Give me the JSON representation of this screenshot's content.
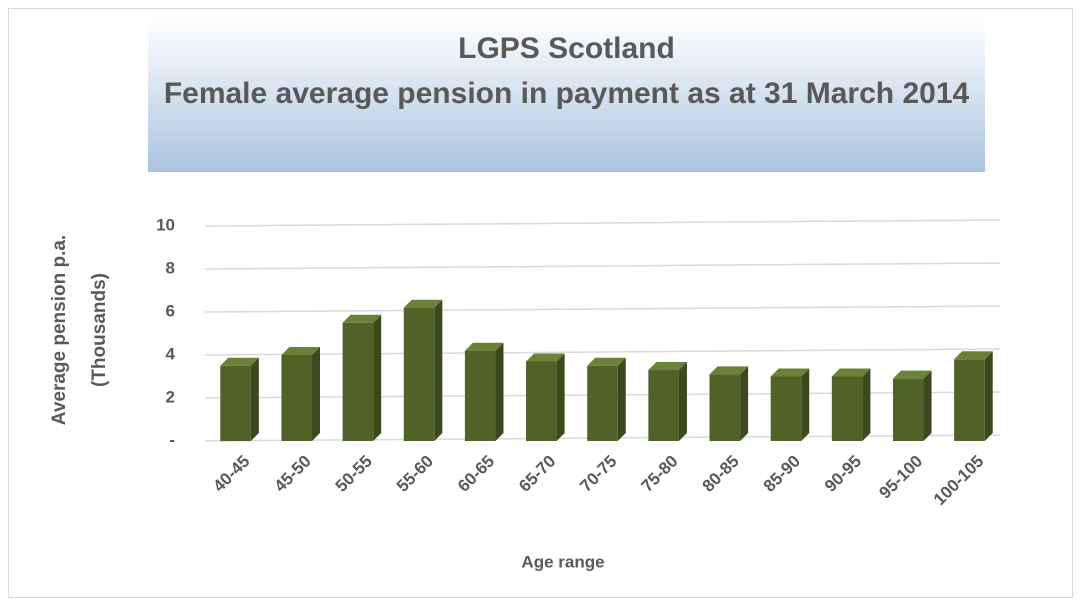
{
  "chart_data": {
    "type": "bar",
    "title": "LGPS Scotland",
    "subtitle": "Female average pension in payment as at 31 March 2014",
    "ylabel": [
      "Average pension p.a.",
      "(Thousands)"
    ],
    "xlabel": "Age range",
    "categories": [
      "40-45",
      "45-50",
      "50-55",
      "55-60",
      "60-65",
      "65-70",
      "70-75",
      "75-80",
      "80-85",
      "85-90",
      "90-95",
      "95-100",
      "100-105"
    ],
    "values": [
      3.5,
      4.0,
      5.5,
      6.2,
      4.2,
      3.7,
      3.5,
      3.3,
      3.1,
      3.0,
      3.0,
      2.9,
      3.8
    ],
    "color": "#4f6228",
    "ylim": [
      0,
      10
    ],
    "yticks": [
      {
        "value": 0,
        "label": "-"
      },
      2,
      4,
      6,
      8,
      10
    ],
    "grid": true
  }
}
